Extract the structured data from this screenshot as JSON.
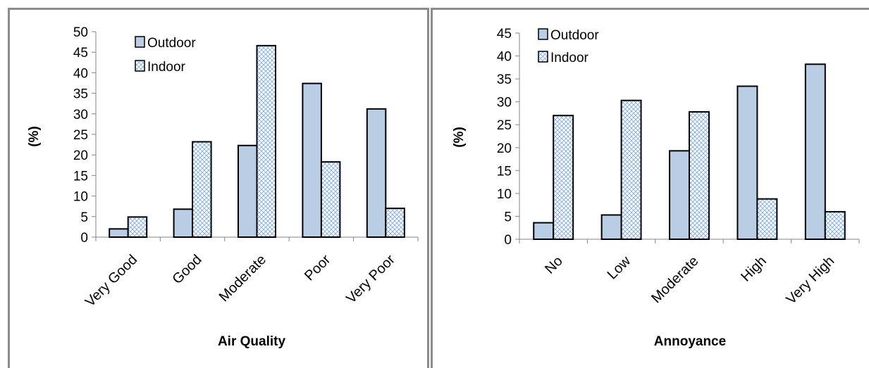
{
  "chart_data": [
    {
      "type": "bar",
      "title": "",
      "xlabel": "Air Quality",
      "ylabel": "(%)",
      "ylim": [
        0,
        50
      ],
      "ytick_step": 5,
      "categories": [
        "Very Good",
        "Good",
        "Moderate",
        "Poor",
        "Very Poor"
      ],
      "series": [
        {
          "name": "Outdoor",
          "values": [
            2.0,
            6.8,
            22.3,
            37.4,
            31.2
          ]
        },
        {
          "name": "Indoor",
          "values": [
            4.9,
            23.2,
            46.6,
            18.3,
            7.0
          ]
        }
      ],
      "legend": "top-left",
      "grid": false
    },
    {
      "type": "bar",
      "title": "",
      "xlabel": "Annoyance",
      "ylabel": "(%)",
      "ylim": [
        0,
        45
      ],
      "ytick_step": 5,
      "categories": [
        "No",
        "Low",
        "Moderate",
        "High",
        "Very High"
      ],
      "series": [
        {
          "name": "Outdoor",
          "values": [
            3.6,
            5.3,
            19.3,
            33.4,
            38.2
          ]
        },
        {
          "name": "Indoor",
          "values": [
            27.0,
            30.3,
            27.8,
            8.8,
            6.0
          ]
        }
      ],
      "legend": "top-left",
      "grid": false
    }
  ],
  "colors": {
    "outdoor_fill": "#b9cde5",
    "indoor_fill": "#ffffff",
    "indoor_hatch": "#8eb4e3",
    "bar_stroke": "#000000",
    "axis": "#868686",
    "panel_border": "#8c8c8c"
  }
}
